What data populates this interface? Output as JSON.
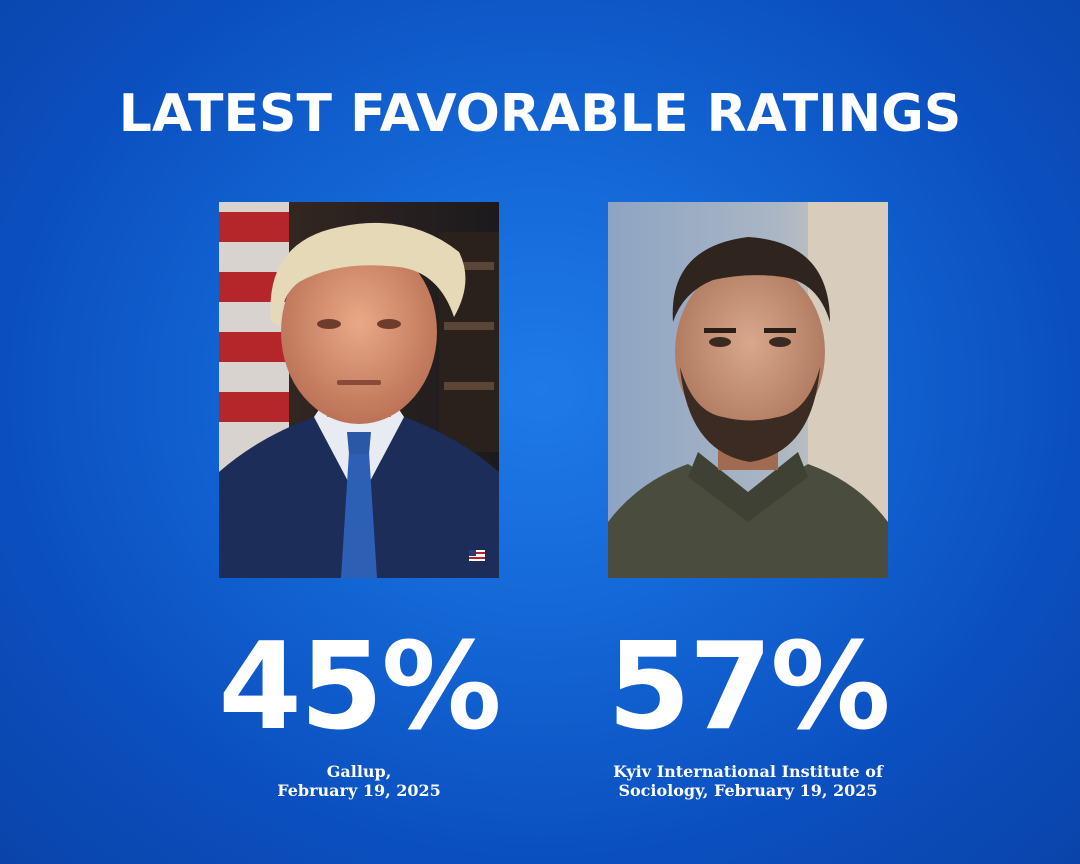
{
  "title": "LATEST FAVORABLE RATINGS",
  "left": {
    "rating": "45%",
    "source_line1": "Gallup,",
    "source_line2": "February 19, 2025",
    "photo_icon": "portrait-suit-flag"
  },
  "right": {
    "rating": "57%",
    "source_line1": "Kyiv International Institute of",
    "source_line2": "Sociology, February 19, 2025",
    "photo_icon": "portrait-olive-fleece"
  },
  "colors": {
    "background_center": "#1f7ae8",
    "background_edge": "#0a44aa",
    "text": "#ffffff"
  }
}
